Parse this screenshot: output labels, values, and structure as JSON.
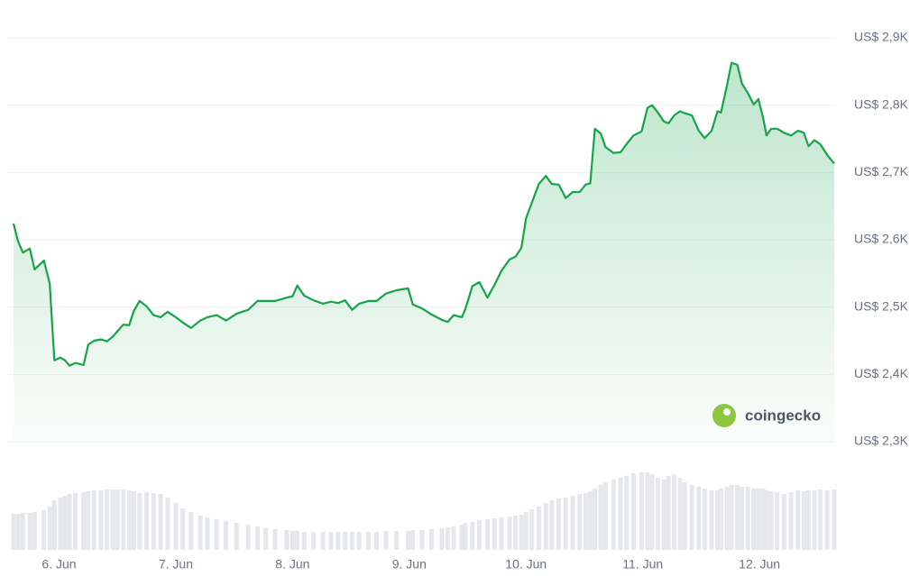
{
  "chart_data": {
    "type": "line",
    "color": "#16a34a",
    "volume_color": "#e5e7eb",
    "x": [
      5.61,
      5.65,
      5.69,
      5.75,
      5.79,
      5.87,
      5.92,
      5.96,
      6.01,
      6.05,
      6.09,
      6.14,
      6.21,
      6.25,
      6.3,
      6.36,
      6.41,
      6.46,
      6.5,
      6.55,
      6.6,
      6.64,
      6.69,
      6.75,
      6.81,
      6.87,
      6.93,
      7.0,
      7.06,
      7.13,
      7.21,
      7.27,
      7.35,
      7.43,
      7.52,
      7.62,
      7.7,
      7.77,
      7.85,
      7.95,
      8.0,
      8.04,
      8.1,
      8.18,
      8.26,
      8.33,
      8.39,
      8.45,
      8.51,
      8.57,
      8.65,
      8.72,
      8.8,
      8.89,
      8.99,
      9.03,
      9.11,
      9.19,
      9.28,
      9.33,
      9.38,
      9.45,
      9.48,
      9.54,
      9.6,
      9.67,
      9.73,
      9.79,
      9.86,
      9.91,
      9.96,
      10.0,
      10.05,
      10.11,
      10.17,
      10.22,
      10.28,
      10.34,
      10.4,
      10.46,
      10.51,
      10.55,
      10.59,
      10.64,
      10.68,
      10.75,
      10.81,
      10.86,
      10.92,
      10.99,
      11.04,
      11.08,
      11.13,
      11.18,
      11.22,
      11.27,
      11.32,
      11.36,
      11.42,
      11.48,
      11.53,
      11.59,
      11.64,
      11.67,
      11.72,
      11.76,
      11.81,
      11.85,
      11.9,
      11.95,
      11.99,
      12.03,
      12.06,
      12.1,
      12.15,
      12.21,
      12.27,
      12.33,
      12.38,
      12.42,
      12.47,
      12.52,
      12.58,
      12.64
    ],
    "values": [
      2624,
      2597,
      2581,
      2587,
      2556,
      2569,
      2535,
      2421,
      2425,
      2421,
      2413,
      2417,
      2414,
      2444,
      2450,
      2452,
      2449,
      2456,
      2464,
      2474,
      2473,
      2494,
      2509,
      2501,
      2488,
      2485,
      2493,
      2485,
      2477,
      2469,
      2480,
      2485,
      2488,
      2480,
      2490,
      2496,
      2509,
      2509,
      2509,
      2514,
      2516,
      2532,
      2517,
      2510,
      2505,
      2508,
      2506,
      2510,
      2496,
      2505,
      2509,
      2509,
      2520,
      2525,
      2528,
      2504,
      2498,
      2489,
      2481,
      2478,
      2488,
      2485,
      2497,
      2531,
      2537,
      2514,
      2533,
      2554,
      2571,
      2575,
      2588,
      2632,
      2655,
      2683,
      2695,
      2683,
      2682,
      2662,
      2671,
      2671,
      2682,
      2684,
      2765,
      2758,
      2738,
      2729,
      2730,
      2742,
      2755,
      2761,
      2796,
      2800,
      2789,
      2776,
      2773,
      2785,
      2791,
      2788,
      2785,
      2762,
      2751,
      2762,
      2791,
      2789,
      2828,
      2863,
      2860,
      2832,
      2818,
      2801,
      2809,
      2782,
      2755,
      2765,
      2765,
      2759,
      2755,
      2762,
      2759,
      2739,
      2748,
      2742,
      2726,
      2713
    ],
    "volume": [
      40,
      40,
      41,
      41,
      42,
      44,
      48,
      55,
      58,
      60,
      62,
      63,
      64,
      65,
      66,
      66,
      67,
      67,
      67,
      67,
      66,
      65,
      63,
      64,
      63,
      62,
      58,
      52,
      46,
      42,
      38,
      36,
      34,
      32,
      30,
      28,
      26,
      24,
      23,
      22,
      21,
      21,
      20,
      20,
      20,
      20,
      20,
      20,
      20,
      20,
      20,
      20,
      21,
      21,
      21,
      22,
      22,
      23,
      24,
      25,
      26,
      28,
      30,
      31,
      33,
      34,
      35,
      36,
      37,
      38,
      39,
      42,
      45,
      48,
      52,
      55,
      57,
      58,
      60,
      62,
      63,
      65,
      68,
      72,
      75,
      78,
      80,
      82,
      85,
      86,
      86,
      84,
      80,
      78,
      82,
      84,
      80,
      75,
      72,
      70,
      68,
      66,
      66,
      68,
      70,
      72,
      72,
      70,
      70,
      68,
      68,
      68,
      66,
      65,
      64,
      62,
      64,
      66,
      65,
      66,
      66,
      67,
      66,
      67
    ],
    "xlim": [
      5.61,
      12.64
    ],
    "xticks": [
      {
        "value": 6,
        "label": "6. Jun"
      },
      {
        "value": 7,
        "label": "7. Jun"
      },
      {
        "value": 8,
        "label": "8. Jun"
      },
      {
        "value": 9,
        "label": "9. Jun"
      },
      {
        "value": 10,
        "label": "10. Jun"
      },
      {
        "value": 11,
        "label": "11. Jun"
      },
      {
        "value": 12,
        "label": "12. Jun"
      }
    ],
    "ylim": [
      2300,
      2900
    ],
    "yticks": [
      {
        "value": 2900,
        "label": "US$ 2,9K"
      },
      {
        "value": 2800,
        "label": "US$ 2,8K"
      },
      {
        "value": 2700,
        "label": "US$ 2,7K"
      },
      {
        "value": 2600,
        "label": "US$ 2,6K"
      },
      {
        "value": 2500,
        "label": "US$ 2,5K"
      },
      {
        "value": 2400,
        "label": "US$ 2,4K"
      },
      {
        "value": 2300,
        "label": "US$ 2,3K"
      }
    ],
    "grid": true,
    "watermark": "coingecko"
  }
}
